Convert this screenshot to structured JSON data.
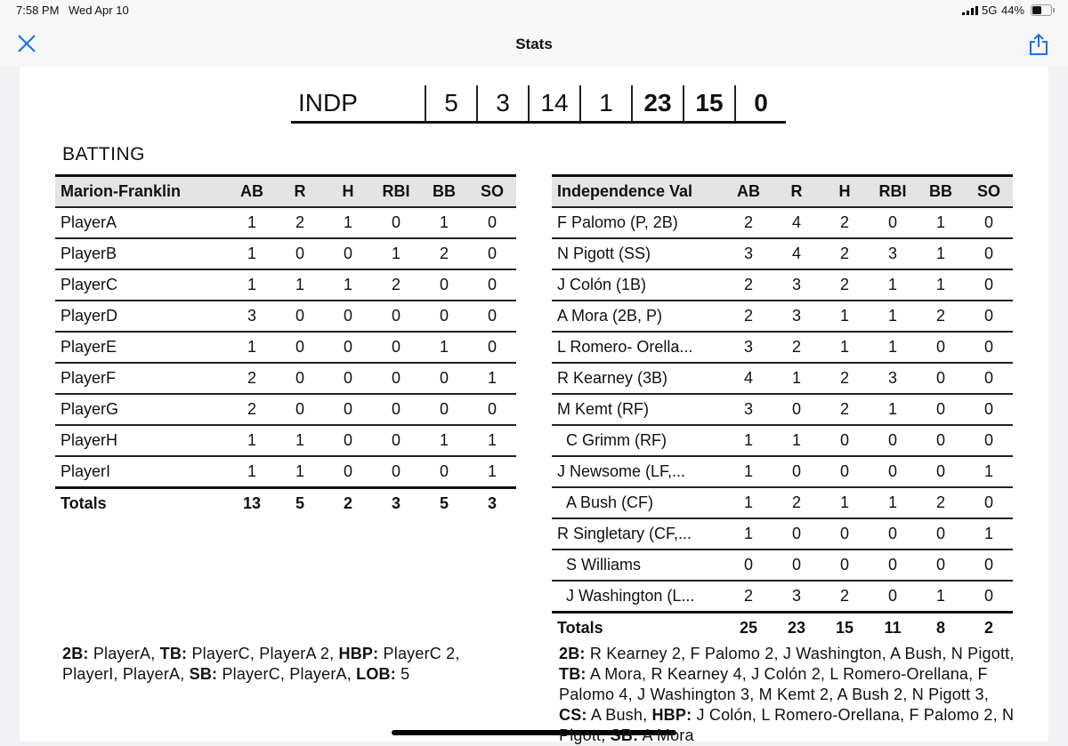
{
  "status_bar": {
    "time": "7:58 PM",
    "date": "Wed Apr 10",
    "network": "5G",
    "battery": "44%"
  },
  "nav": {
    "title": "Stats"
  },
  "linescore": {
    "team": "INDP",
    "values": [
      5,
      3,
      14,
      1,
      23,
      15,
      0
    ],
    "bold": [
      false,
      false,
      false,
      false,
      true,
      true,
      true
    ]
  },
  "batting": {
    "title": "BATTING",
    "home": {
      "headers": [
        "Marion-Franklin",
        "AB",
        "R",
        "H",
        "RBI",
        "BB",
        "SO"
      ],
      "rows": [
        [
          "PlayerA",
          1,
          2,
          1,
          0,
          1,
          0
        ],
        [
          "PlayerB",
          1,
          0,
          0,
          1,
          2,
          0
        ],
        [
          "PlayerC",
          1,
          1,
          1,
          2,
          0,
          0
        ],
        [
          "PlayerD",
          3,
          0,
          0,
          0,
          0,
          0
        ],
        [
          "PlayerE",
          1,
          0,
          0,
          0,
          1,
          0
        ],
        [
          "PlayerF",
          2,
          0,
          0,
          0,
          0,
          1
        ],
        [
          "PlayerG",
          2,
          0,
          0,
          0,
          0,
          0
        ],
        [
          "PlayerH",
          1,
          1,
          0,
          0,
          1,
          1
        ],
        [
          "PlayerI",
          1,
          1,
          0,
          0,
          0,
          1
        ]
      ],
      "sub": [
        false,
        false,
        false,
        false,
        false,
        false,
        false,
        false,
        false
      ],
      "totals": [
        "Totals",
        13,
        5,
        2,
        3,
        5,
        3
      ]
    },
    "away": {
      "headers": [
        "Independence Val",
        "AB",
        "R",
        "H",
        "RBI",
        "BB",
        "SO"
      ],
      "rows": [
        [
          "F Palomo (P, 2B)",
          2,
          4,
          2,
          0,
          1,
          0
        ],
        [
          "N Pigott (SS)",
          3,
          4,
          2,
          3,
          1,
          0
        ],
        [
          "J Colón (1B)",
          2,
          3,
          2,
          1,
          1,
          0
        ],
        [
          "A Mora (2B, P)",
          2,
          3,
          1,
          1,
          2,
          0
        ],
        [
          "L Romero- Orella...",
          3,
          2,
          1,
          1,
          0,
          0
        ],
        [
          "R Kearney (3B)",
          4,
          1,
          2,
          3,
          0,
          0
        ],
        [
          "M Kemt (RF)",
          3,
          0,
          2,
          1,
          0,
          0
        ],
        [
          "C Grimm (RF)",
          1,
          1,
          0,
          0,
          0,
          0
        ],
        [
          "J Newsome (LF,...",
          1,
          0,
          0,
          0,
          0,
          1
        ],
        [
          "A Bush (CF)",
          1,
          2,
          1,
          1,
          2,
          0
        ],
        [
          "R Singletary (CF,...",
          1,
          0,
          0,
          0,
          0,
          1
        ],
        [
          "S Williams",
          0,
          0,
          0,
          0,
          0,
          0
        ],
        [
          "J Washington (L...",
          2,
          3,
          2,
          0,
          1,
          0
        ]
      ],
      "sub": [
        false,
        false,
        false,
        false,
        false,
        false,
        false,
        true,
        false,
        true,
        false,
        true,
        true
      ],
      "totals": [
        "Totals",
        25,
        23,
        15,
        11,
        8,
        2
      ]
    }
  },
  "notes": {
    "home": [
      {
        "label": "2B:",
        "text": "PlayerA,"
      },
      {
        "label": "TB:",
        "text": "PlayerC, PlayerA 2,"
      },
      {
        "label": "HBP:",
        "text": "PlayerC 2, PlayerI, PlayerA,"
      },
      {
        "label": "SB:",
        "text": "PlayerC, PlayerA,"
      },
      {
        "label": "LOB:",
        "text": "5"
      }
    ],
    "away": [
      {
        "label": "2B:",
        "text": "R Kearney 2, F Palomo 2, J Washington, A Bush, N Pigott,"
      },
      {
        "label": "TB:",
        "text": "A Mora, R Kearney 4, J Colón 2, L Romero-Orellana, F Palomo 4, J Washington 3, M Kemt 2, A Bush 2, N Pigott 3,"
      },
      {
        "label": "CS:",
        "text": "A Bush,"
      },
      {
        "label": "HBP:",
        "text": "J Colón, L Romero-Orellana, F Palomo 2, N Pigott,"
      },
      {
        "label": "SB:",
        "text": "A Mora"
      }
    ]
  }
}
